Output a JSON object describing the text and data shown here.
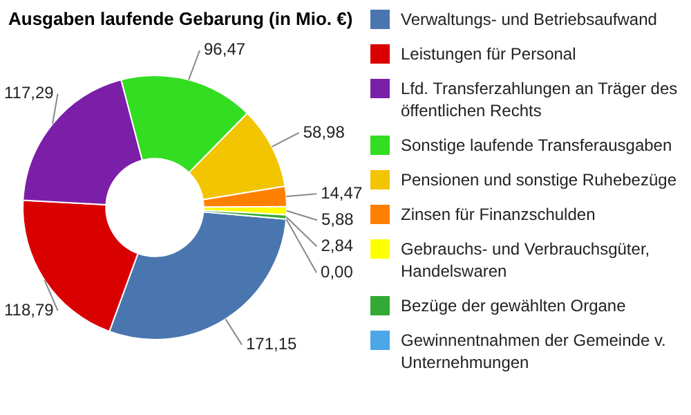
{
  "chart_data": {
    "type": "donut",
    "title": "Ausgaben laufende Gebarung (in Mio. €)",
    "categories": [
      "Verwaltungs- und Betriebsaufwand",
      "Leistungen für Personal",
      "Lfd. Transferzahlungen an Träger des öffentlichen Rechts",
      "Sonstige laufende Transferausgaben",
      "Pensionen und sonstige Ruhebezüge",
      "Zinsen für Finanzschulden",
      "Gebrauchs- und Verbrauchsgüter, Handelswaren",
      "Bezüge der gewählten Organe",
      "Gewinnentnahmen der Gemeinde v. Unternehmungen"
    ],
    "values": [
      171.15,
      118.79,
      117.29,
      96.47,
      58.98,
      14.47,
      5.88,
      2.84,
      0.0
    ],
    "value_labels": [
      "171,15",
      "118,79",
      "117,29",
      "96,47",
      "58,98",
      "14,47",
      "5,88",
      "2,84",
      "0,00"
    ],
    "colors": [
      "#4a76b0",
      "#d90000",
      "#7b1fa8",
      "#33dd22",
      "#f2c500",
      "#ff8000",
      "#ffff00",
      "#33aa33",
      "#4da6e8"
    ],
    "legend": "right"
  }
}
